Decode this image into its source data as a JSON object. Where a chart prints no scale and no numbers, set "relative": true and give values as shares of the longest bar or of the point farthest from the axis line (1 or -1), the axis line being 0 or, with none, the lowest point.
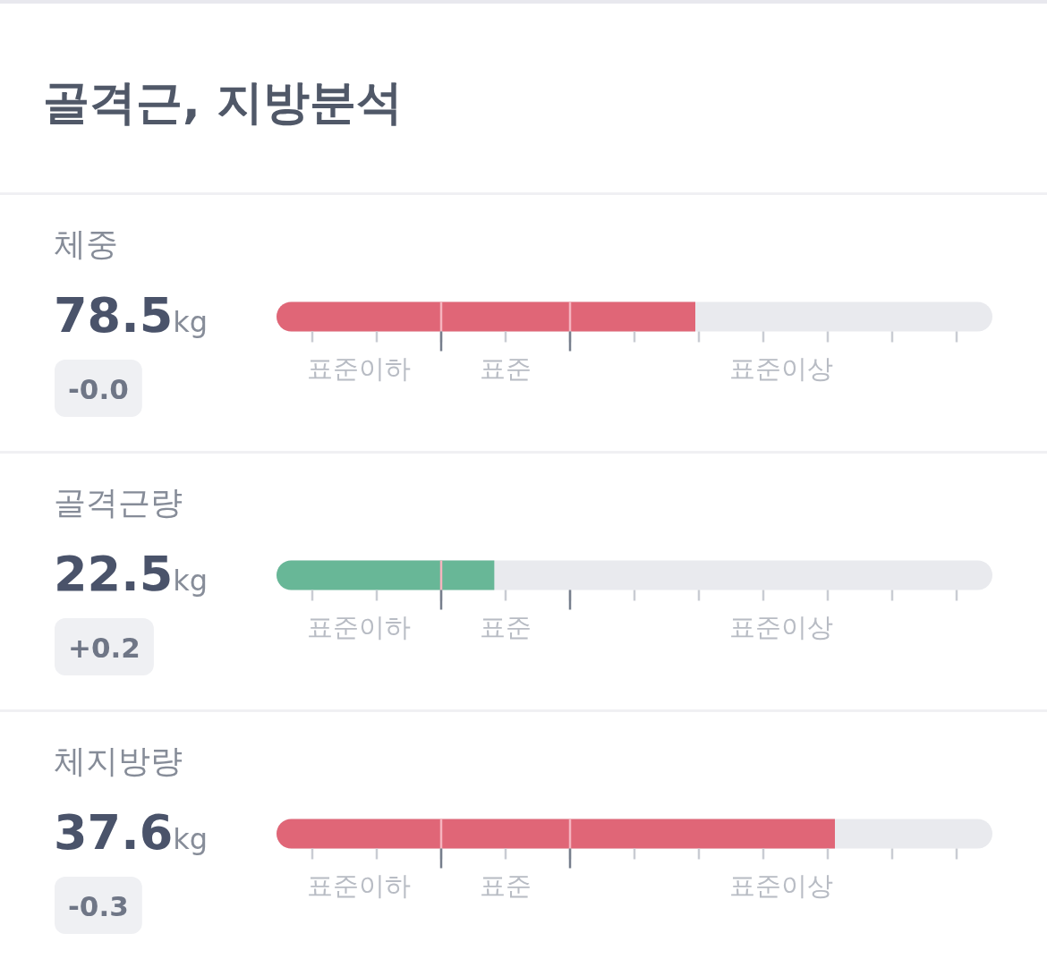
{
  "chart_data": {
    "type": "bar",
    "orientation": "horizontal",
    "relative": true,
    "title": "골격근, 지방분석",
    "categories": [
      "체중",
      "골격근량",
      "체지방량"
    ],
    "values": [
      0.75,
      0.39,
      1
    ],
    "colors": [
      "#e06677",
      "#68b797",
      "#e06677"
    ],
    "annotations": [
      "78.5kg",
      "-0.0",
      "표준이하",
      "표준",
      "표준이상",
      "22.5kg",
      "+0.2",
      "표준이하",
      "표준",
      "표준이상",
      "37.6kg",
      "-0.3",
      "표준이하",
      "표준",
      "표준이상"
    ]
  }
}
